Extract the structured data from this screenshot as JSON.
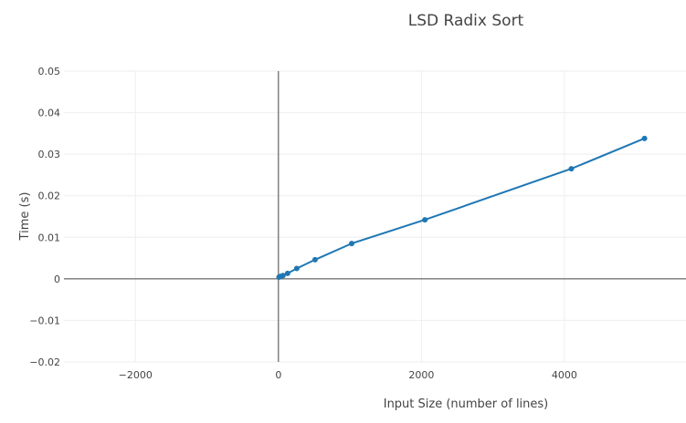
{
  "chart_data": {
    "type": "line",
    "title": "LSD Radix Sort",
    "xlabel": "Input Size (number of lines)",
    "ylabel": "Time (s)",
    "xlim": [
      -3000,
      5700
    ],
    "ylim": [
      -0.02,
      0.05
    ],
    "x_ticks": [
      -2000,
      0,
      2000,
      4000
    ],
    "x_tick_labels": [
      "−2000",
      "0",
      "2000",
      "4000"
    ],
    "y_ticks": [
      -0.02,
      -0.01,
      0,
      0.01,
      0.02,
      0.03,
      0.04,
      0.05
    ],
    "y_tick_labels": [
      "−0.02",
      "−0.01",
      "0",
      "0.01",
      "0.02",
      "0.03",
      "0.04",
      "0.05"
    ],
    "grid": true,
    "series": [
      {
        "color": "#1f77b4",
        "x": [
          8,
          16,
          32,
          64,
          128,
          256,
          512,
          1024,
          2048,
          4096,
          5120
        ],
        "y": [
          0.0004,
          0.0005,
          0.0006,
          0.0008,
          0.0013,
          0.0025,
          0.0046,
          0.0085,
          0.0142,
          0.0265,
          0.0338
        ]
      }
    ]
  }
}
